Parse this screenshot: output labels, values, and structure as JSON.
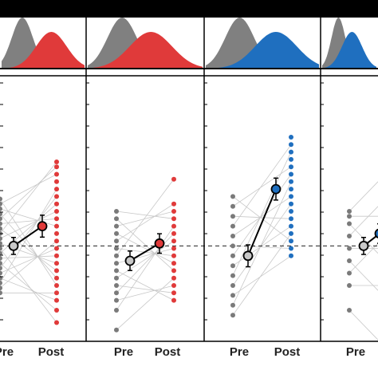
{
  "colors": {
    "pre": "#7a7a7a",
    "post_red": "#e03a3a",
    "post_blue": "#1f6fbf",
    "mean_line": "#000000",
    "pair_line": "#c8c8c8",
    "density_pre": "#808080"
  },
  "chart_data": {
    "type": "scatter",
    "title": "",
    "xlabel": "",
    "ylabel": "",
    "ylim": [
      0,
      1
    ],
    "reference_line": {
      "y": 0.36,
      "style": "dashed"
    },
    "panels": [
      {
        "tick_labels": [
          "Pre",
          "Post"
        ],
        "post_color": "#e03a3a",
        "pre_mean": 0.36,
        "pre_err": 0.015,
        "post_mean": 0.44,
        "post_err": 0.025,
        "pre_values": [
          0.17,
          0.19,
          0.21,
          0.23,
          0.25,
          0.27,
          0.29,
          0.31,
          0.33,
          0.35,
          0.37,
          0.39,
          0.41,
          0.43,
          0.45,
          0.47,
          0.49,
          0.51,
          0.53,
          0.55
        ],
        "post_values": [
          0.05,
          0.1,
          0.14,
          0.17,
          0.2,
          0.23,
          0.26,
          0.29,
          0.32,
          0.35,
          0.38,
          0.41,
          0.44,
          0.47,
          0.5,
          0.53,
          0.56,
          0.59,
          0.62,
          0.65,
          0.68,
          0.7
        ],
        "density": {
          "pre_peak": 0.25,
          "post_peak": 0.6
        }
      },
      {
        "tick_labels": [
          "Pre",
          "Post"
        ],
        "post_color": "#e03a3a",
        "pre_mean": 0.3,
        "pre_err": 0.02,
        "post_mean": 0.37,
        "post_err": 0.02,
        "pre_values": [
          0.02,
          0.1,
          0.14,
          0.17,
          0.2,
          0.23,
          0.26,
          0.29,
          0.32,
          0.35,
          0.38,
          0.41,
          0.44,
          0.47,
          0.5
        ],
        "post_values": [
          0.14,
          0.17,
          0.2,
          0.23,
          0.26,
          0.29,
          0.32,
          0.35,
          0.38,
          0.41,
          0.44,
          0.47,
          0.5,
          0.53,
          0.63
        ],
        "density": {
          "pre_peak": 0.3,
          "post_peak": 0.55
        }
      },
      {
        "tick_labels": [
          "Pre",
          "Post"
        ],
        "post_color": "#1f6fbf",
        "pre_mean": 0.32,
        "pre_err": 0.025,
        "post_mean": 0.59,
        "post_err": 0.025,
        "pre_values": [
          0.08,
          0.12,
          0.16,
          0.2,
          0.24,
          0.28,
          0.32,
          0.36,
          0.4,
          0.44,
          0.48,
          0.52,
          0.56
        ],
        "post_values": [
          0.32,
          0.35,
          0.38,
          0.41,
          0.44,
          0.47,
          0.5,
          0.53,
          0.56,
          0.59,
          0.62,
          0.65,
          0.68,
          0.71,
          0.74,
          0.77,
          0.8
        ],
        "density": {
          "pre_peak": 0.3,
          "post_peak": 0.62
        }
      },
      {
        "tick_labels": [
          "Pre"
        ],
        "post_color": "#1f6fbf",
        "pre_mean": 0.36,
        "pre_err": 0.015,
        "post_mean": 0.41,
        "post_err": 0.02,
        "pre_values": [
          0.1,
          0.2,
          0.25,
          0.3,
          0.35,
          0.4,
          0.45,
          0.48,
          0.5
        ],
        "post_values": [],
        "density": {
          "pre_peak": 0.3,
          "post_peak": 0.55
        }
      }
    ]
  }
}
